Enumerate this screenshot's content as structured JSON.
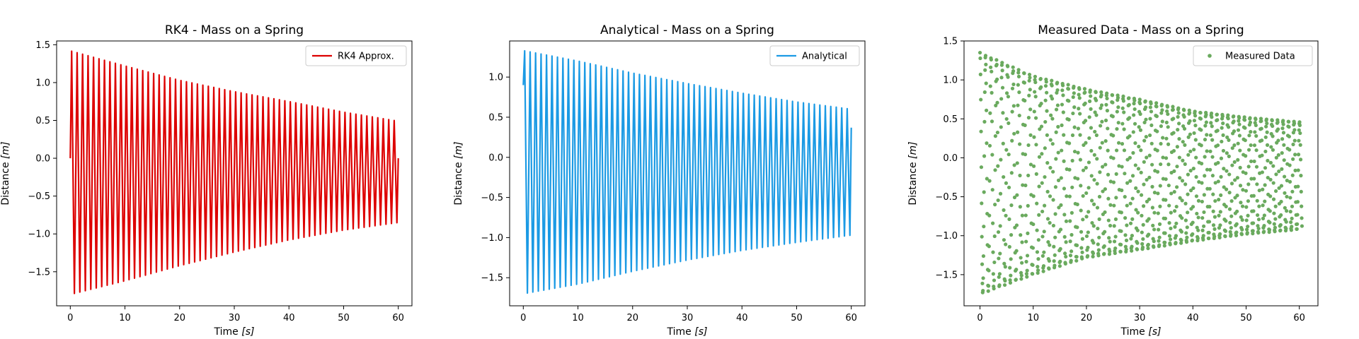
{
  "figure": {
    "background": "#ffffff"
  },
  "chart_data": [
    {
      "type": "line",
      "title": "RK4 - Mass on a Spring",
      "xlabel_main": "Time ",
      "xlabel_unit": "[s]",
      "ylabel_main": "Distance ",
      "ylabel_unit": "[m]",
      "xlim": [
        -2.5,
        62.5
      ],
      "ylim": [
        -1.95,
        1.55
      ],
      "xticks": [
        0,
        10,
        20,
        30,
        40,
        50,
        60
      ],
      "yticks": [
        -1.5,
        -1.0,
        -0.5,
        0.0,
        0.5,
        1.0,
        1.5
      ],
      "ytick_labels": [
        "−1.5",
        "−1.0",
        "−0.5",
        "0.0",
        "0.5",
        "1.0",
        "1.5"
      ],
      "grid": false,
      "legend_position": "top-right",
      "series": [
        {
          "name": "RK4 Approx.",
          "color": "#dd0000",
          "style": "line",
          "t_start": 0,
          "t_end": 60,
          "initial_value": 0.0,
          "oscillation_count": 60,
          "envelope_times": [
            0,
            10,
            20,
            30,
            40,
            50,
            60
          ],
          "upper_peaks": [
            1.42,
            1.22,
            1.03,
            0.88,
            0.75,
            0.61,
            0.49
          ],
          "lower_troughs": [
            -1.8,
            -1.62,
            -1.42,
            -1.24,
            -1.08,
            -0.95,
            -0.85
          ],
          "end_value": 0.0
        }
      ]
    },
    {
      "type": "line",
      "title": "Analytical - Mass on a Spring",
      "xlabel_main": "Time ",
      "xlabel_unit": "[s]",
      "ylabel_main": "Distance ",
      "ylabel_unit": "[m]",
      "xlim": [
        -2.5,
        62.5
      ],
      "ylim": [
        -1.85,
        1.45
      ],
      "xticks": [
        0,
        10,
        20,
        30,
        40,
        50,
        60
      ],
      "yticks": [
        -1.5,
        -1.0,
        -0.5,
        0.0,
        0.5,
        1.0
      ],
      "ytick_labels": [
        "−1.5",
        "−1.0",
        "−0.5",
        "0.0",
        "0.5",
        "1.0"
      ],
      "grid": false,
      "legend_position": "top-right",
      "series": [
        {
          "name": "Analytical",
          "color": "#1b9ae4",
          "style": "line",
          "t_start": 0,
          "t_end": 60,
          "initial_value": 0.9,
          "oscillation_count": 60,
          "envelope_times": [
            0,
            10,
            20,
            30,
            40,
            50,
            60
          ],
          "upper_peaks": [
            1.33,
            1.2,
            1.05,
            0.92,
            0.8,
            0.69,
            0.6
          ],
          "lower_troughs": [
            -1.7,
            -1.58,
            -1.42,
            -1.28,
            -1.16,
            -1.06,
            -0.97
          ],
          "end_value": 0.37
        }
      ]
    },
    {
      "type": "scatter",
      "title": "Measured Data - Mass on a Spring",
      "xlabel_main": "Time ",
      "xlabel_unit": "[s]",
      "ylabel_main": "Distance ",
      "ylabel_unit": "[m]",
      "xlim": [
        -3,
        63.5
      ],
      "ylim": [
        -1.9,
        1.5
      ],
      "xticks": [
        0,
        10,
        20,
        30,
        40,
        50,
        60
      ],
      "yticks": [
        -1.5,
        -1.0,
        -0.5,
        0.0,
        0.5,
        1.0,
        1.5
      ],
      "ytick_labels": [
        "−1.5",
        "−1.0",
        "−0.5",
        "0.0",
        "0.5",
        "1.0",
        "1.5"
      ],
      "grid": false,
      "legend_position": "top-right",
      "series": [
        {
          "name": "Measured Data",
          "color": "#6aaa5e",
          "style": "markers",
          "t_start": 0,
          "t_end": 60.5,
          "sample_count": 1210,
          "oscillation_frequency_hz": 0.966,
          "envelope_times": [
            0,
            10,
            20,
            30,
            40,
            50,
            60
          ],
          "upper_peaks": [
            1.35,
            1.05,
            0.88,
            0.75,
            0.6,
            0.52,
            0.46
          ],
          "lower_troughs": [
            -1.75,
            -1.5,
            -1.28,
            -1.18,
            -1.07,
            -0.98,
            -0.92
          ]
        }
      ]
    }
  ]
}
